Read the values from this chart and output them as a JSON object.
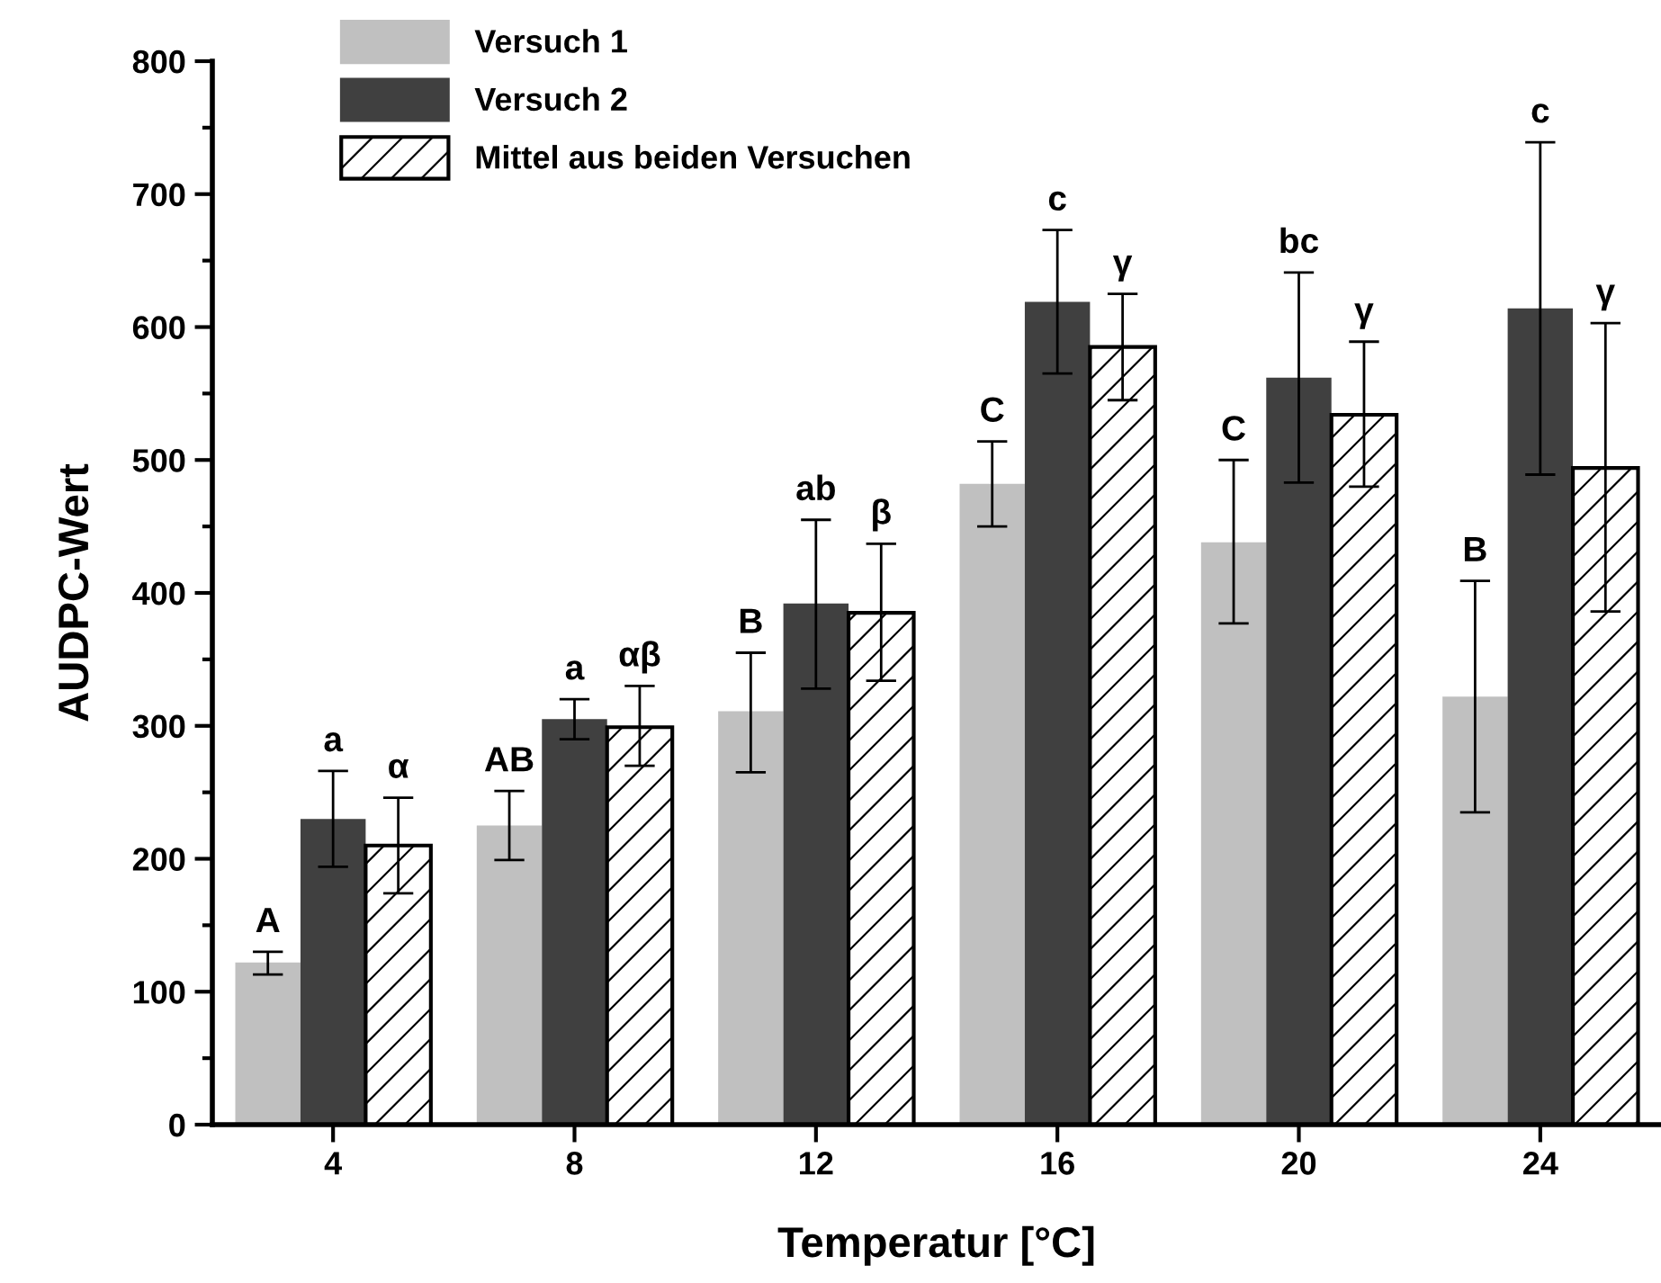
{
  "chart_data": {
    "type": "bar",
    "xlabel": "Temperatur [°C]",
    "ylabel": "AUDPC-Wert",
    "categories": [
      "4",
      "8",
      "12",
      "16",
      "20",
      "24"
    ],
    "series": [
      {
        "name": "Versuch 1",
        "color": "#c0c0c0",
        "values": [
          122,
          225,
          311,
          482,
          438,
          322
        ],
        "errors": [
          [
            113,
            130
          ],
          [
            199,
            251
          ],
          [
            265,
            355
          ],
          [
            450,
            514
          ],
          [
            377,
            500
          ],
          [
            235,
            409
          ]
        ]
      },
      {
        "name": "Versuch 2",
        "color": "#404040",
        "values": [
          230,
          305,
          392,
          619,
          562,
          614
        ],
        "errors": [
          [
            194,
            266
          ],
          [
            290,
            320
          ],
          [
            328,
            455
          ],
          [
            565,
            673
          ],
          [
            483,
            641
          ],
          [
            489,
            739
          ]
        ]
      },
      {
        "name": "Mittel aus beiden Versuchen",
        "color": "#ffffff",
        "values": [
          210,
          299,
          385,
          585,
          534,
          494
        ],
        "errors": [
          [
            174,
            246
          ],
          [
            270,
            330
          ],
          [
            334,
            437
          ],
          [
            545,
            625
          ],
          [
            480,
            589
          ],
          [
            386,
            603
          ]
        ]
      }
    ],
    "annotations": [
      "A",
      "a",
      "α",
      "AB",
      "a",
      "αβ",
      "B",
      "ab",
      "β",
      "C",
      "c",
      "γ",
      "C",
      "bc",
      "γ",
      "B",
      "c",
      "γ"
    ],
    "ylim": [
      0,
      800
    ],
    "yticks": [
      0,
      {
        "value": 50,
        "label": null
      },
      100,
      {
        "value": 150,
        "label": null
      },
      200,
      {
        "value": 250,
        "label": null
      },
      300,
      {
        "value": 350,
        "label": null
      },
      400,
      {
        "value": 450,
        "label": null
      },
      500,
      {
        "value": 550,
        "label": null
      },
      600,
      {
        "value": 650,
        "label": null
      },
      700,
      {
        "value": 750,
        "label": null
      },
      800
    ],
    "grid": false,
    "legend": "top left"
  }
}
